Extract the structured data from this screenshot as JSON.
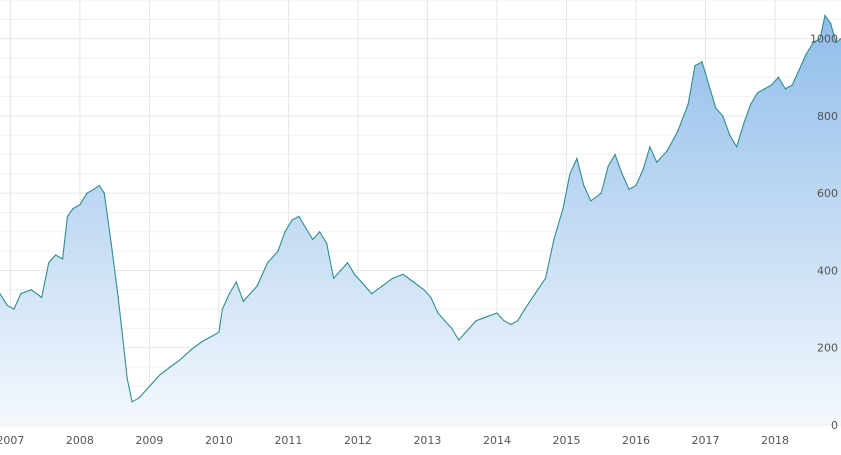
{
  "chart_data": {
    "type": "area",
    "title": "",
    "xlabel": "",
    "ylabel": "",
    "grid": true,
    "legend": "none",
    "line_color": "#2e8f8f",
    "fill_top_color": "#90bdea",
    "fill_bottom_color": "#f4f8fd",
    "xlim": [
      2006.85,
      2018.95
    ],
    "ylim": [
      0,
      1100
    ],
    "x_ticks": [
      {
        "value": 2007,
        "label": "2007"
      },
      {
        "value": 2008,
        "label": "2008"
      },
      {
        "value": 2009,
        "label": "2009"
      },
      {
        "value": 2010,
        "label": "2010"
      },
      {
        "value": 2011,
        "label": "2011"
      },
      {
        "value": 2012,
        "label": "2012"
      },
      {
        "value": 2013,
        "label": "2013"
      },
      {
        "value": 2014,
        "label": "2014"
      },
      {
        "value": 2015,
        "label": "2015"
      },
      {
        "value": 2016,
        "label": "2016"
      },
      {
        "value": 2017,
        "label": "2017"
      },
      {
        "value": 2018,
        "label": "2018"
      }
    ],
    "y_ticks": [
      {
        "value": 0,
        "label": "0"
      },
      {
        "value": 200,
        "label": "200"
      },
      {
        "value": 400,
        "label": "400"
      },
      {
        "value": 600,
        "label": "600"
      },
      {
        "value": 800,
        "label": "800"
      },
      {
        "value": 1000,
        "label": "1000"
      }
    ],
    "series": [
      {
        "points": [
          [
            2006.85,
            340
          ],
          [
            2006.95,
            310
          ],
          [
            2007.05,
            300
          ],
          [
            2007.15,
            340
          ],
          [
            2007.3,
            350
          ],
          [
            2007.45,
            330
          ],
          [
            2007.55,
            420
          ],
          [
            2007.65,
            440
          ],
          [
            2007.75,
            430
          ],
          [
            2007.82,
            540
          ],
          [
            2007.9,
            560
          ],
          [
            2008.0,
            570
          ],
          [
            2008.1,
            600
          ],
          [
            2008.2,
            610
          ],
          [
            2008.28,
            620
          ],
          [
            2008.35,
            600
          ],
          [
            2008.45,
            470
          ],
          [
            2008.55,
            330
          ],
          [
            2008.62,
            220
          ],
          [
            2008.68,
            120
          ],
          [
            2008.75,
            60
          ],
          [
            2008.85,
            70
          ],
          [
            2008.95,
            90
          ],
          [
            2009.05,
            110
          ],
          [
            2009.15,
            130
          ],
          [
            2009.3,
            150
          ],
          [
            2009.45,
            170
          ],
          [
            2009.6,
            195
          ],
          [
            2009.75,
            215
          ],
          [
            2009.9,
            230
          ],
          [
            2010.0,
            240
          ],
          [
            2010.05,
            300
          ],
          [
            2010.15,
            340
          ],
          [
            2010.25,
            370
          ],
          [
            2010.35,
            320
          ],
          [
            2010.45,
            340
          ],
          [
            2010.55,
            360
          ],
          [
            2010.7,
            420
          ],
          [
            2010.85,
            450
          ],
          [
            2010.95,
            500
          ],
          [
            2011.05,
            530
          ],
          [
            2011.15,
            540
          ],
          [
            2011.25,
            510
          ],
          [
            2011.35,
            480
          ],
          [
            2011.45,
            500
          ],
          [
            2011.55,
            470
          ],
          [
            2011.65,
            380
          ],
          [
            2011.75,
            400
          ],
          [
            2011.85,
            420
          ],
          [
            2011.95,
            390
          ],
          [
            2012.05,
            370
          ],
          [
            2012.2,
            340
          ],
          [
            2012.35,
            360
          ],
          [
            2012.5,
            380
          ],
          [
            2012.65,
            390
          ],
          [
            2012.8,
            370
          ],
          [
            2012.95,
            350
          ],
          [
            2013.05,
            330
          ],
          [
            2013.15,
            290
          ],
          [
            2013.25,
            270
          ],
          [
            2013.35,
            250
          ],
          [
            2013.45,
            220
          ],
          [
            2013.55,
            240
          ],
          [
            2013.7,
            270
          ],
          [
            2013.85,
            280
          ],
          [
            2014.0,
            290
          ],
          [
            2014.1,
            270
          ],
          [
            2014.2,
            260
          ],
          [
            2014.3,
            270
          ],
          [
            2014.4,
            300
          ],
          [
            2014.55,
            340
          ],
          [
            2014.7,
            380
          ],
          [
            2014.82,
            480
          ],
          [
            2014.95,
            560
          ],
          [
            2015.05,
            650
          ],
          [
            2015.15,
            690
          ],
          [
            2015.25,
            620
          ],
          [
            2015.35,
            580
          ],
          [
            2015.5,
            600
          ],
          [
            2015.6,
            670
          ],
          [
            2015.7,
            700
          ],
          [
            2015.8,
            650
          ],
          [
            2015.9,
            610
          ],
          [
            2016.0,
            620
          ],
          [
            2016.1,
            660
          ],
          [
            2016.2,
            720
          ],
          [
            2016.3,
            680
          ],
          [
            2016.45,
            710
          ],
          [
            2016.6,
            760
          ],
          [
            2016.75,
            830
          ],
          [
            2016.85,
            930
          ],
          [
            2016.95,
            940
          ],
          [
            2017.05,
            880
          ],
          [
            2017.15,
            820
          ],
          [
            2017.25,
            800
          ],
          [
            2017.35,
            750
          ],
          [
            2017.45,
            720
          ],
          [
            2017.55,
            780
          ],
          [
            2017.65,
            830
          ],
          [
            2017.75,
            860
          ],
          [
            2017.85,
            870
          ],
          [
            2017.95,
            880
          ],
          [
            2018.05,
            900
          ],
          [
            2018.15,
            870
          ],
          [
            2018.25,
            880
          ],
          [
            2018.35,
            920
          ],
          [
            2018.45,
            960
          ],
          [
            2018.55,
            990
          ],
          [
            2018.65,
            1000
          ],
          [
            2018.72,
            1060
          ],
          [
            2018.8,
            1040
          ],
          [
            2018.88,
            990
          ],
          [
            2018.95,
            1000
          ]
        ]
      }
    ]
  }
}
